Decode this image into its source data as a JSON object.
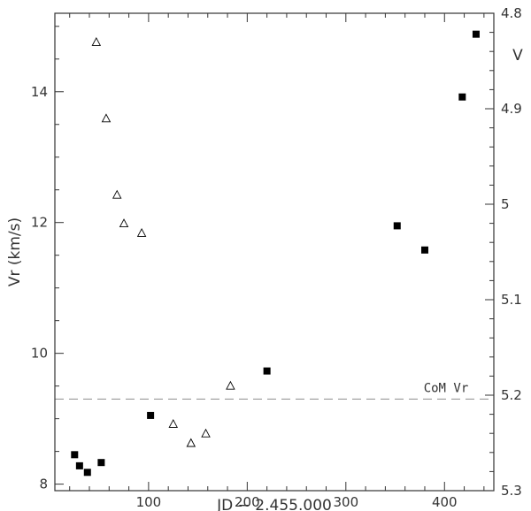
{
  "chart_data": {
    "type": "scatter",
    "xlabel": "JD − 2.455.000",
    "ylabel": "Vr (km/s)",
    "y2label": "V",
    "xlim": [
      5,
      450
    ],
    "ylim": [
      7.9,
      15.2
    ],
    "y2lim": [
      5.3,
      4.8
    ],
    "y2_inverted": true,
    "x_ticks": [
      100,
      200,
      300,
      400
    ],
    "y_ticks": [
      8,
      10,
      12,
      14
    ],
    "y2_ticks": [
      4.8,
      4.9,
      5,
      5.1,
      5.2,
      5.3
    ],
    "y2_tick_labels": [
      "4.8",
      "4.9",
      "5",
      "5.1",
      "5.2",
      "5.3"
    ],
    "grid": false,
    "reference_line": {
      "y": 9.3,
      "label": "CoM Vr",
      "style": "dashed"
    },
    "series": [
      {
        "marker": "filled-square",
        "axis": "left",
        "x": [
          25,
          30,
          38,
          52,
          102,
          220,
          352,
          380,
          418,
          432
        ],
        "y": [
          8.45,
          8.28,
          8.18,
          8.33,
          9.05,
          9.73,
          11.95,
          11.58,
          13.92,
          14.88
        ]
      },
      {
        "marker": "open-triangle",
        "axis": "right",
        "x": [
          47,
          57,
          68,
          75,
          93,
          125,
          143,
          158,
          183
        ],
        "y": [
          4.83,
          4.91,
          4.99,
          5.02,
          5.03,
          5.23,
          5.25,
          5.24,
          5.19
        ]
      }
    ]
  },
  "colors": {
    "marker": "#000000",
    "axis": "#333333",
    "reference_line": "#999999"
  }
}
